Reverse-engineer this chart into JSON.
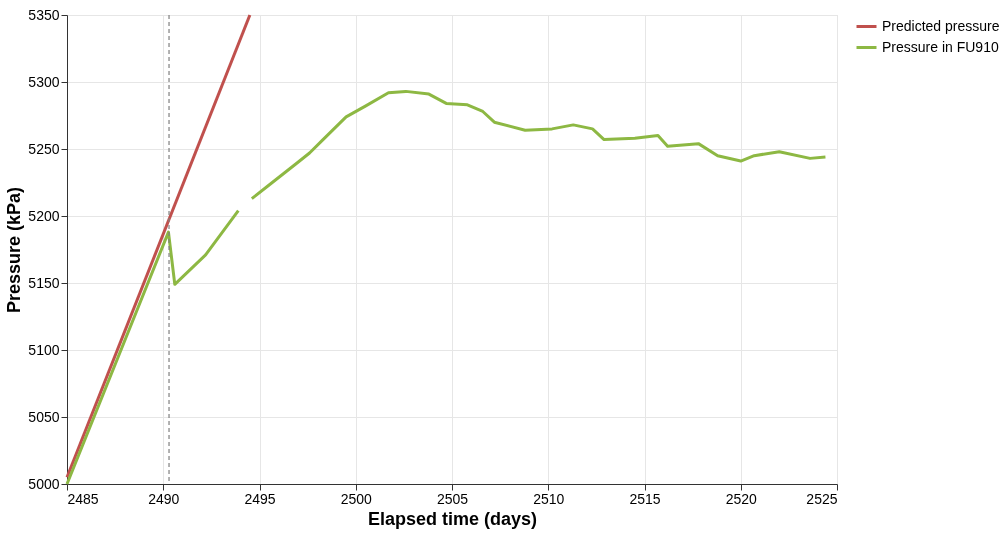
{
  "chart_data": {
    "type": "line",
    "xlabel": "Elapsed time (days)",
    "ylabel": "Pressure (kPa)",
    "xlim": [
      2485,
      2525
    ],
    "xticks": [
      2485,
      2490,
      2495,
      2500,
      2505,
      2510,
      2515,
      2520,
      2525
    ],
    "ylim": [
      5000,
      5350
    ],
    "yticks": [
      5000,
      5050,
      5100,
      5150,
      5200,
      5250,
      5300,
      5350
    ],
    "grid": true,
    "legend": "right",
    "marker": "none",
    "line_style": "solid",
    "ref_lines": [
      {
        "axis": "x",
        "value": 2490.3,
        "color": "#808080",
        "line_style": "dashed"
      }
    ],
    "series": [
      {
        "name": "Predicted pressure",
        "color": "#c0504d",
        "x": [
          2485,
          2494.5
        ],
        "values": [
          5005,
          5350
        ]
      },
      {
        "name": "Pressure in FU910",
        "color": "#8db843",
        "x": [
          2485,
          2490.27,
          2490.6,
          2492.2,
          2493.9,
          2494.2,
          2494.6,
          2495.4,
          2496.9,
          2497.6,
          2498.3,
          2499.5,
          2500.5,
          2501.7,
          2502.6,
          2503.8,
          2504.7,
          2505.8,
          2506.6,
          2507.2,
          2508.8,
          2510.2,
          2511.3,
          2512.3,
          2512.9,
          2514.5,
          2515.7,
          2516.2,
          2517.8,
          2518.8,
          2520.0,
          2520.7,
          2522.0,
          2523.6,
          2524.4
        ],
        "values": [
          5000,
          5188,
          5149,
          5171,
          5204,
          null,
          5213,
          5222,
          5239,
          5247,
          5257,
          5274,
          5282,
          5292,
          5293,
          5291,
          5284,
          5283,
          5278,
          5270,
          5264,
          5265,
          5268,
          5265,
          5257,
          5258,
          5260,
          5252,
          5254,
          5245,
          5241,
          5245,
          5248,
          5243,
          5244
        ]
      }
    ]
  }
}
